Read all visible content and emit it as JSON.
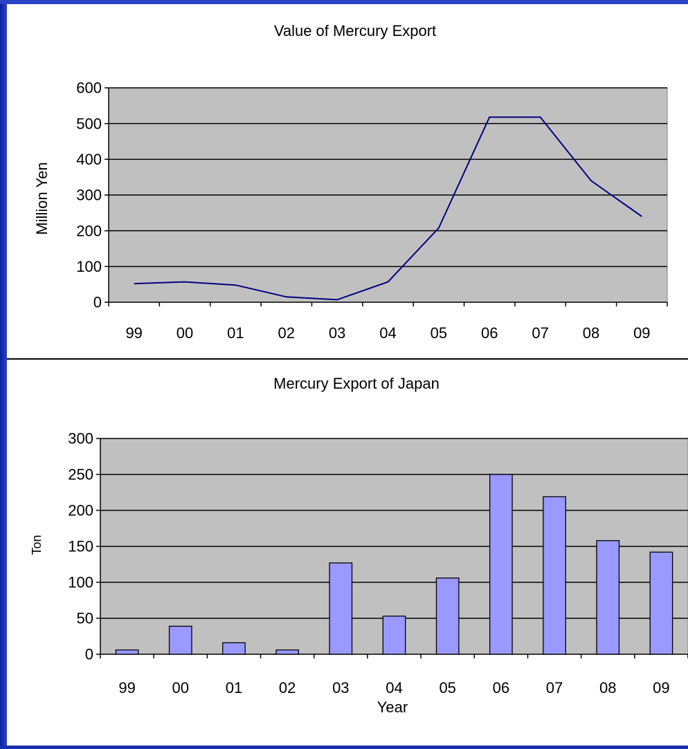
{
  "colors": {
    "plot_bg": "#c0c0c0",
    "line": "#000080",
    "bar_fill": "#9999ff",
    "frame": "#1a2fa8"
  },
  "chart_data": [
    {
      "type": "line",
      "title": "Value of Mercury Export",
      "xlabel": "",
      "ylabel": "Million Yen",
      "categories": [
        "99",
        "00",
        "01",
        "02",
        "03",
        "04",
        "05",
        "06",
        "07",
        "08",
        "09"
      ],
      "values": [
        52,
        57,
        48,
        15,
        7,
        57,
        208,
        518,
        518,
        340,
        240
      ],
      "ylim": [
        0,
        600
      ],
      "yticks": [
        "0",
        "100",
        "200",
        "300",
        "400",
        "500",
        "600"
      ],
      "grid": true,
      "legend": "none"
    },
    {
      "type": "bar",
      "title": "Mercury Export of Japan",
      "xlabel": "Year",
      "ylabel": "Ton",
      "categories": [
        "99",
        "00",
        "01",
        "02",
        "03",
        "04",
        "05",
        "06",
        "07",
        "08",
        "09"
      ],
      "values": [
        6,
        39,
        16,
        6,
        127,
        53,
        106,
        250,
        219,
        158,
        142
      ],
      "ylim": [
        0,
        300
      ],
      "yticks": [
        "0",
        "50",
        "100",
        "150",
        "200",
        "250",
        "300"
      ],
      "grid": true,
      "legend": "none"
    }
  ]
}
